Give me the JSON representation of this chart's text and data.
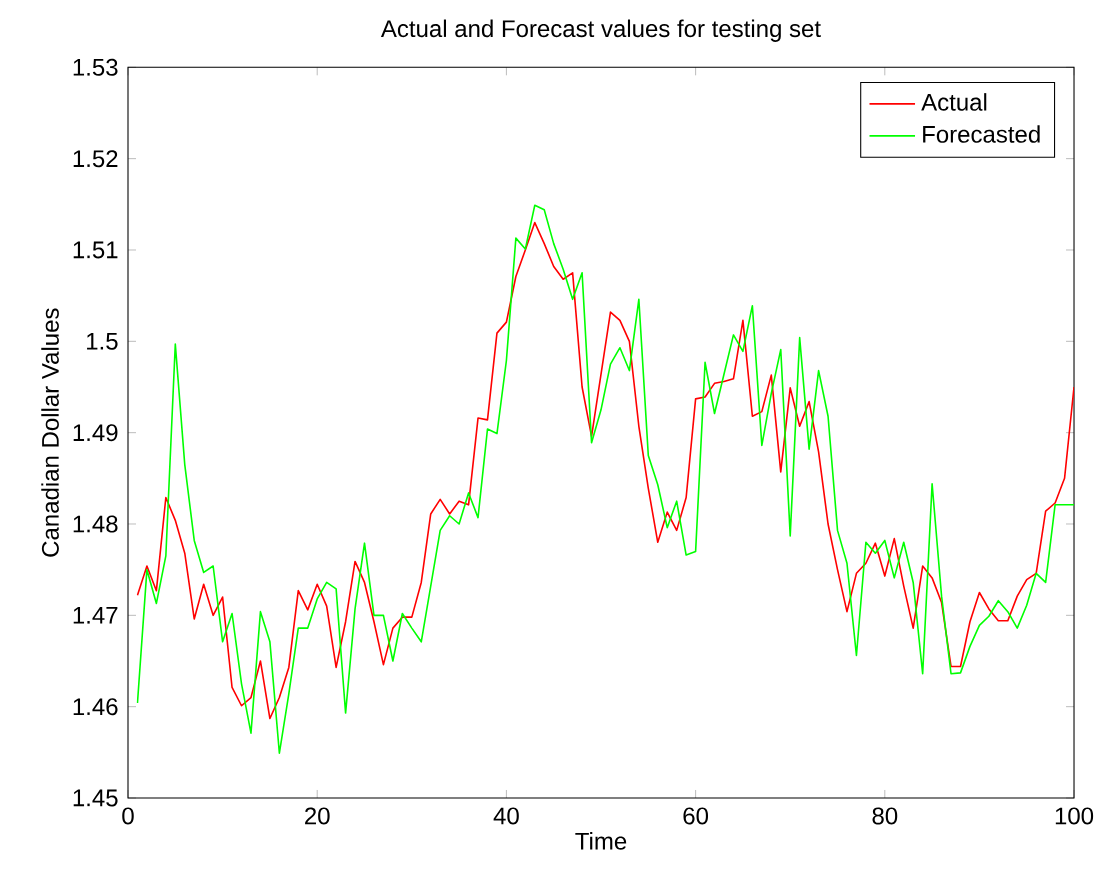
{
  "chart_data": {
    "type": "line",
    "title": "Actual and Forecast values for testing set",
    "xlabel": "Time",
    "ylabel": "Canadian Dollar Values",
    "x": [
      1,
      2,
      3,
      4,
      5,
      6,
      7,
      8,
      9,
      10,
      11,
      12,
      13,
      14,
      15,
      16,
      17,
      18,
      19,
      20,
      21,
      22,
      23,
      24,
      25,
      26,
      27,
      28,
      29,
      30,
      31,
      32,
      33,
      34,
      35,
      36,
      37,
      38,
      39,
      40,
      41,
      42,
      43,
      44,
      45,
      46,
      47,
      48,
      49,
      50,
      51,
      52,
      53,
      54,
      55,
      56,
      57,
      58,
      59,
      60,
      61,
      62,
      63,
      64,
      65,
      66,
      67,
      68,
      69,
      70,
      71,
      72,
      73,
      74,
      75,
      76,
      77,
      78,
      79,
      80,
      81,
      82,
      83,
      84,
      85,
      86,
      87,
      88,
      89,
      90,
      91,
      92,
      93,
      94,
      95,
      96,
      97,
      98,
      99,
      100
    ],
    "series": [
      {
        "name": "Actual",
        "color": "#ff0000",
        "values": [
          1.4722,
          1.4754,
          1.4727,
          1.4829,
          1.4804,
          1.4768,
          1.4696,
          1.4734,
          1.47,
          1.472,
          1.4621,
          1.4601,
          1.461,
          1.465,
          1.4587,
          1.461,
          1.4643,
          1.4727,
          1.4706,
          1.4734,
          1.471,
          1.4643,
          1.4693,
          1.4759,
          1.4736,
          1.4693,
          1.4646,
          1.4686,
          1.4698,
          1.4698,
          1.4736,
          1.4811,
          1.4827,
          1.4811,
          1.4825,
          1.4821,
          1.4916,
          1.4914,
          1.5009,
          1.5021,
          1.5071,
          1.51,
          1.513,
          1.5107,
          1.5082,
          1.5068,
          1.5075,
          1.495,
          1.4896,
          1.4964,
          1.5032,
          1.5023,
          1.5,
          1.4907,
          1.4839,
          1.478,
          1.4813,
          1.4793,
          1.4829,
          1.4937,
          1.4939,
          1.4954,
          1.4956,
          1.4959,
          1.5023,
          1.4918,
          1.4923,
          1.4963,
          1.4857,
          1.4949,
          1.4907,
          1.4934,
          1.4879,
          1.48,
          1.475,
          1.4704,
          1.4746,
          1.4757,
          1.4779,
          1.4743,
          1.4784,
          1.4732,
          1.4686,
          1.4754,
          1.4741,
          1.4714,
          1.4644,
          1.4644,
          1.4693,
          1.4725,
          1.4707,
          1.4694,
          1.4694,
          1.4721,
          1.4739,
          1.4746,
          1.4814,
          1.4823,
          1.485,
          1.495
        ]
      },
      {
        "name": "Forecasted",
        "color": "#00ff00",
        "values": [
          1.4604,
          1.475,
          1.4713,
          1.4765,
          1.4997,
          1.4865,
          1.4782,
          1.4747,
          1.4754,
          1.4671,
          1.4702,
          1.4625,
          1.4571,
          1.4704,
          1.4671,
          1.4549,
          1.4614,
          1.4686,
          1.4686,
          1.4718,
          1.4736,
          1.4729,
          1.4593,
          1.4707,
          1.4779,
          1.47,
          1.47,
          1.465,
          1.4702,
          1.4686,
          1.4671,
          1.4732,
          1.4793,
          1.4809,
          1.48,
          1.4834,
          1.4807,
          1.4904,
          1.4899,
          1.4979,
          1.5113,
          1.5101,
          1.5149,
          1.5144,
          1.5107,
          1.5079,
          1.5046,
          1.5075,
          1.4889,
          1.4925,
          1.4975,
          1.4993,
          1.4968,
          1.5046,
          1.4875,
          1.4843,
          1.4796,
          1.4825,
          1.4766,
          1.477,
          1.4977,
          1.4921,
          1.4964,
          1.5007,
          1.4989,
          1.5039,
          1.4886,
          1.4943,
          1.4991,
          1.4787,
          1.5004,
          1.4882,
          1.4968,
          1.4918,
          1.4793,
          1.4757,
          1.4656,
          1.478,
          1.4768,
          1.4782,
          1.4741,
          1.478,
          1.4736,
          1.4636,
          1.4844,
          1.4721,
          1.4636,
          1.4637,
          1.4666,
          1.4689,
          1.4699,
          1.4716,
          1.4704,
          1.4686,
          1.4711,
          1.4746,
          1.4736,
          1.4821,
          1.4821,
          1.4821
        ]
      }
    ],
    "xlim": [
      0,
      100
    ],
    "xticks": [
      0,
      20,
      40,
      60,
      80,
      100
    ],
    "ylim": [
      1.45,
      1.53
    ],
    "yticks": [
      1.45,
      1.46,
      1.47,
      1.48,
      1.49,
      1.5,
      1.51,
      1.52,
      1.53
    ],
    "grid": false,
    "legend": "top right",
    "marker": "none",
    "line_style": "solid"
  }
}
